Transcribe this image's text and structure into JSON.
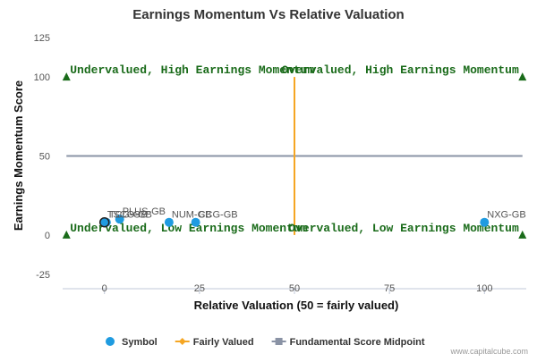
{
  "chart_data": {
    "type": "scatter",
    "title": "Earnings Momentum Vs Relative Valuation",
    "xlabel": "Relative Valuation (50 = fairly valued)",
    "ylabel": "Earnings Momentum Score",
    "xlim": [
      -11,
      111
    ],
    "ylim": [
      -25,
      125
    ],
    "xticks": [
      0,
      25,
      50,
      75,
      100
    ],
    "yticks": [
      -25,
      0,
      50,
      100,
      125
    ],
    "series": [
      {
        "name": "Symbol",
        "color": "#1f9be0",
        "points": [
          {
            "label": "TSCO-GB",
            "x": 0,
            "y": 8,
            "highlight": true
          },
          {
            "label": "TCG-GB",
            "x": 0.5,
            "y": 8
          },
          {
            "label": "PLUS-GB",
            "x": 4,
            "y": 10
          },
          {
            "label": "NUM-GB",
            "x": 17,
            "y": 8
          },
          {
            "label": "CCG-GB",
            "x": 24,
            "y": 8
          },
          {
            "label": "NXG-GB",
            "x": 100,
            "y": 8
          }
        ]
      },
      {
        "name": "Fairly Valued",
        "color": "#f5a623",
        "x": [
          50,
          50
        ],
        "y": [
          0,
          100
        ]
      },
      {
        "name": "Fundamental Score Midpoint",
        "color": "#8a93a5",
        "x": [
          -10,
          110
        ],
        "y": [
          50,
          50
        ]
      }
    ],
    "corner_markers": [
      {
        "x": -10,
        "y": 100
      },
      {
        "x": 110,
        "y": 100
      },
      {
        "x": -10,
        "y": 0
      },
      {
        "x": 110,
        "y": 0
      }
    ],
    "corner_marker_color": "#1a6b1a",
    "quadrant_labels": [
      {
        "text": "Undervalued, High Earnings Momentum",
        "x": -10,
        "y": 100,
        "anchor": "start"
      },
      {
        "text": "Overvalued, High Earnings Momentum",
        "x": 110,
        "y": 100,
        "anchor": "end"
      },
      {
        "text": "Undervalued, Low Earnings Momentum",
        "x": -10,
        "y": 0,
        "anchor": "start"
      },
      {
        "text": "Overvalued, Low Earnings Momentum",
        "x": 110,
        "y": 0,
        "anchor": "end"
      }
    ],
    "legend": {
      "position": "bottom",
      "items": [
        {
          "name": "Symbol",
          "marker": "circle",
          "color": "#1f9be0"
        },
        {
          "name": "Fairly Valued",
          "marker": "diamond-line",
          "color": "#f5a623"
        },
        {
          "name": "Fundamental Score Midpoint",
          "marker": "square-line",
          "color": "#8a93a5"
        }
      ]
    },
    "grid": false,
    "credit": "www.capitalcube.com"
  }
}
